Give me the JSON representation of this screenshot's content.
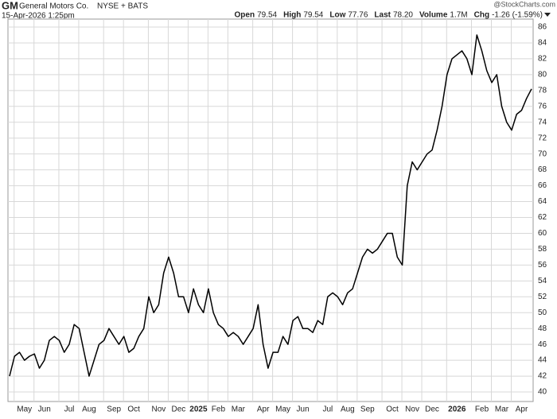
{
  "chart_data": {
    "type": "line",
    "ticker": "GM",
    "company": "General Motors Co.",
    "exchange": "NYSE + BATS",
    "date": "15-Apr-2026 1:25pm",
    "source": "@StockCharts.com",
    "quote": [
      {
        "label": "Open",
        "value": "79.54"
      },
      {
        "label": "High",
        "value": "79.54"
      },
      {
        "label": "Low",
        "value": "77.76"
      },
      {
        "label": "Last",
        "value": "78.20"
      },
      {
        "label": "Volume",
        "value": "1.7M"
      },
      {
        "label": "Chg",
        "value": "-1.26 (-1.59%)"
      }
    ],
    "color": "#000000",
    "grid": true,
    "ylim": [
      38.8,
      87
    ],
    "yticks": [
      40,
      42,
      44,
      46,
      48,
      50,
      52,
      54,
      56,
      58,
      60,
      62,
      64,
      66,
      68,
      70,
      72,
      74,
      76,
      78,
      80,
      82,
      84,
      86
    ],
    "categories": [
      null,
      null,
      null,
      "May",
      null,
      null,
      null,
      "Jun",
      null,
      null,
      null,
      null,
      "Jul",
      null,
      null,
      null,
      "Aug",
      null,
      null,
      null,
      null,
      "Sep",
      null,
      null,
      null,
      "Oct",
      null,
      null,
      null,
      null,
      "Nov",
      null,
      null,
      null,
      "Dec",
      null,
      null,
      null,
      "2025",
      null,
      null,
      null,
      "Feb",
      null,
      null,
      null,
      "Mar",
      null,
      null,
      null,
      null,
      "Apr",
      null,
      null,
      null,
      "May",
      null,
      null,
      null,
      "Jun",
      null,
      null,
      null,
      null,
      "Jul",
      null,
      null,
      null,
      "Aug",
      null,
      null,
      null,
      "Sep",
      null,
      null,
      null,
      null,
      "Oct",
      null,
      null,
      null,
      "Nov",
      null,
      null,
      null,
      "Dec",
      null,
      null,
      null,
      null,
      "2026",
      null,
      null,
      null,
      null,
      "Feb",
      null,
      null,
      null,
      "Mar",
      null,
      null,
      null,
      "Apr",
      null,
      null
    ],
    "values": [
      42,
      44.5,
      45,
      44,
      44.5,
      44.8,
      43,
      44,
      46.5,
      47,
      46.5,
      45,
      46,
      48.5,
      48,
      45,
      42,
      44,
      46,
      46.5,
      48,
      47,
      46,
      47,
      45,
      45.5,
      47,
      48,
      52,
      50,
      51,
      55,
      57,
      55,
      52,
      52,
      50,
      53,
      51,
      50,
      53,
      50,
      48.5,
      48,
      47,
      47.5,
      47,
      46,
      47,
      48,
      51,
      46,
      43,
      45,
      45,
      47,
      46,
      49,
      49.5,
      48,
      48,
      47.5,
      49,
      48.5,
      52,
      52.5,
      52,
      51,
      52.5,
      53,
      55,
      57,
      58,
      57.5,
      58,
      59,
      60,
      60,
      57,
      56,
      66,
      69,
      68,
      69,
      70,
      70.5,
      73,
      76,
      80,
      82,
      82.5,
      83,
      82,
      80,
      85,
      83,
      80.5,
      79,
      80,
      76,
      74,
      73,
      75,
      75.5,
      77,
      78.2
    ]
  }
}
